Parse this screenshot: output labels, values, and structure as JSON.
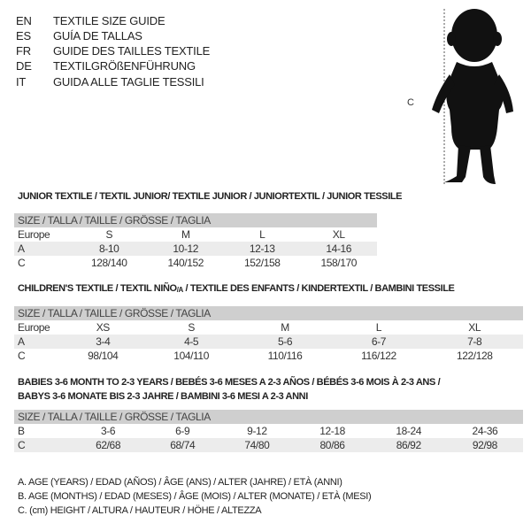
{
  "header": {
    "lines": [
      {
        "code": "EN",
        "text": "TEXTILE SIZE GUIDE"
      },
      {
        "code": "ES",
        "text": "GUÍA DE TALLAS"
      },
      {
        "code": "FR",
        "text": "GUIDE DES TAILLES TEXTILE"
      },
      {
        "code": "DE",
        "text": "TEXTILGRÖßENFÜHRUNG"
      },
      {
        "code": "IT",
        "text": "GUIDA ALLE TAGLIE TESSILI"
      }
    ]
  },
  "figure": {
    "label": "C"
  },
  "junior": {
    "title": "JUNIOR TEXTILE / TEXTIL JUNIOR/ TEXTILE JUNIOR / JUNIORTEXTIL / JUNIOR TESSILE",
    "header": "SIZE / TALLA / TAILLE / GRÖSSE / TAGLIA",
    "rows": [
      {
        "label": "Europe",
        "values": [
          "S",
          "M",
          "L",
          "XL"
        ]
      },
      {
        "label": "A",
        "values": [
          "8-10",
          "10-12",
          "12-13",
          "14-16"
        ]
      },
      {
        "label": "C",
        "values": [
          "128/140",
          "140/152",
          "152/158",
          "158/170"
        ]
      }
    ]
  },
  "children": {
    "title_pre": "CHILDREN'S TEXTILE / TEXTIL NIÑO",
    "title_sub": "/A",
    "title_post": " / TEXTILE DES ENFANTS / KINDERTEXTIL / BAMBINI TESSILE",
    "header": "SIZE / TALLA / TAILLE / GRÖSSE / TAGLIA",
    "rows": [
      {
        "label": "Europe",
        "values": [
          "XS",
          "S",
          "M",
          "L",
          "XL"
        ]
      },
      {
        "label": "A",
        "values": [
          "3-4",
          "4-5",
          "5-6",
          "6-7",
          "7-8"
        ]
      },
      {
        "label": "C",
        "values": [
          "98/104",
          "104/110",
          "110/116",
          "116/122",
          "122/128"
        ]
      }
    ]
  },
  "babies": {
    "title_line1": "BABIES 3-6 MONTH TO 2-3 YEARS / BEBÉS 3-6 MESES A 2-3 AÑOS / BÉBÉS 3-6 MOIS À 2-3 ANS /",
    "title_line2": "BABYS 3-6 MONATE BIS 2-3 JAHRE / BAMBINI 3-6 MESI A 2-3 ANNI",
    "header": "SIZE / TALLA / TAILLE / GRÖSSE / TAGLIA",
    "rows": [
      {
        "label": "B",
        "values": [
          "3-6",
          "6-9",
          "9-12",
          "12-18",
          "18-24",
          "24-36"
        ]
      },
      {
        "label": "C",
        "values": [
          "62/68",
          "68/74",
          "74/80",
          "80/86",
          "86/92",
          "92/98"
        ]
      }
    ]
  },
  "legend": [
    "A. AGE (YEARS) / EDAD (AÑOS) / ÂGE (ANS) / ALTER (JAHRE) / ETÀ (ANNI)",
    "B. AGE (MONTHS) / EDAD (MESES) / ÂGE (MOIS) / ALTER (MONATE) / ETÀ (MESI)",
    "C. (cm) HEIGHT / ALTURA / HAUTEUR / HÖHE / ALTEZZA"
  ]
}
